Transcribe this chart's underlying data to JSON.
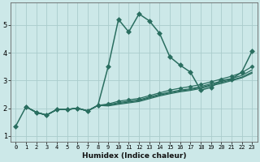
{
  "xlabel": "Humidex (Indice chaleur)",
  "bg_color": "#cce8e8",
  "grid_color": "#aacccc",
  "line_color": "#2a6e60",
  "xlim": [
    -0.5,
    23.5
  ],
  "ylim": [
    0.8,
    5.8
  ],
  "yticks": [
    1,
    2,
    3,
    4,
    5
  ],
  "xticks": [
    0,
    1,
    2,
    3,
    4,
    5,
    6,
    7,
    8,
    9,
    10,
    11,
    12,
    13,
    14,
    15,
    16,
    17,
    18,
    19,
    20,
    21,
    22,
    23
  ],
  "series": [
    {
      "x": [
        0,
        1,
        2,
        3,
        4,
        5,
        6,
        7,
        8,
        9,
        10,
        11,
        12,
        13,
        14,
        15,
        16,
        17,
        18,
        19,
        20,
        21,
        22,
        23
      ],
      "y": [
        1.35,
        2.05,
        1.85,
        1.75,
        1.95,
        1.95,
        2.0,
        1.9,
        2.1,
        3.5,
        5.2,
        4.75,
        5.4,
        5.15,
        4.7,
        3.85,
        3.55,
        3.3,
        2.65,
        2.75,
        3.0,
        3.05,
        3.3,
        4.05
      ],
      "marker": "D",
      "markersize": 3.0,
      "linestyle": "-",
      "linewidth": 1.1
    },
    {
      "x": [
        1,
        2,
        3,
        4,
        5,
        6,
        7,
        8,
        9,
        10,
        11,
        12,
        13,
        14,
        15,
        16,
        17,
        18,
        19,
        20,
        21,
        22,
        23
      ],
      "y": [
        2.05,
        1.85,
        1.75,
        1.95,
        1.95,
        2.0,
        1.9,
        2.1,
        2.15,
        2.25,
        2.3,
        2.35,
        2.45,
        2.55,
        2.65,
        2.72,
        2.78,
        2.85,
        2.95,
        3.05,
        3.15,
        3.28,
        3.5
      ],
      "marker": "D",
      "markersize": 2.5,
      "linestyle": "-",
      "linewidth": 0.9
    },
    {
      "x": [
        1,
        2,
        3,
        4,
        5,
        6,
        7,
        8,
        9,
        10,
        11,
        12,
        13,
        14,
        15,
        16,
        17,
        18,
        19,
        20,
        21,
        22,
        23
      ],
      "y": [
        2.05,
        1.85,
        1.75,
        1.95,
        1.95,
        2.0,
        1.9,
        2.1,
        2.12,
        2.2,
        2.25,
        2.3,
        2.4,
        2.5,
        2.58,
        2.65,
        2.7,
        2.78,
        2.88,
        2.97,
        3.07,
        3.18,
        3.38
      ],
      "marker": null,
      "markersize": 0,
      "linestyle": "-",
      "linewidth": 0.9
    },
    {
      "x": [
        1,
        2,
        3,
        4,
        5,
        6,
        7,
        8,
        9,
        10,
        11,
        12,
        13,
        14,
        15,
        16,
        17,
        18,
        19,
        20,
        21,
        22,
        23
      ],
      "y": [
        2.05,
        1.85,
        1.75,
        1.95,
        1.95,
        2.0,
        1.9,
        2.1,
        2.1,
        2.17,
        2.22,
        2.27,
        2.37,
        2.47,
        2.55,
        2.62,
        2.67,
        2.74,
        2.84,
        2.93,
        3.02,
        3.12,
        3.3
      ],
      "marker": null,
      "markersize": 0,
      "linestyle": "-",
      "linewidth": 0.9
    },
    {
      "x": [
        1,
        2,
        3,
        4,
        5,
        6,
        7,
        8,
        9,
        10,
        11,
        12,
        13,
        14,
        15,
        16,
        17,
        18,
        19,
        20,
        21,
        22,
        23
      ],
      "y": [
        2.05,
        1.85,
        1.75,
        1.95,
        1.95,
        2.0,
        1.9,
        2.1,
        2.08,
        2.14,
        2.19,
        2.24,
        2.34,
        2.44,
        2.52,
        2.59,
        2.64,
        2.71,
        2.81,
        2.89,
        2.99,
        3.09,
        3.26
      ],
      "marker": null,
      "markersize": 0,
      "linestyle": "-",
      "linewidth": 0.9
    }
  ]
}
